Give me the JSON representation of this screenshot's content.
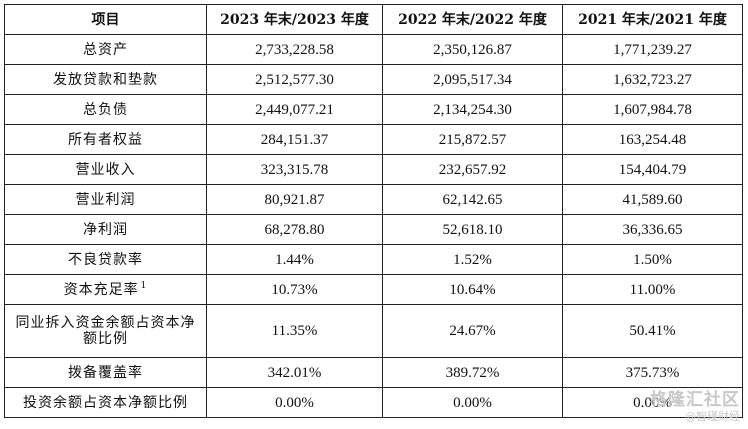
{
  "table": {
    "headers": [
      "项目",
      "2023 年末/2023 年度",
      "2022 年末/2022 年度",
      "2021 年末/2021 年度"
    ],
    "rows": [
      {
        "label": "总资产",
        "values": [
          "2,733,228.58",
          "2,350,126.87",
          "1,771,239.27"
        ]
      },
      {
        "label": "发放贷款和垫款",
        "values": [
          "2,512,577.30",
          "2,095,517.34",
          "1,632,723.27"
        ]
      },
      {
        "label": "总负债",
        "values": [
          "2,449,077.21",
          "2,134,254.30",
          "1,607,984.78"
        ]
      },
      {
        "label": "所有者权益",
        "values": [
          "284,151.37",
          "215,872.57",
          "163,254.48"
        ]
      },
      {
        "label": "营业收入",
        "values": [
          "323,315.78",
          "232,657.92",
          "154,404.79"
        ]
      },
      {
        "label": "营业利润",
        "values": [
          "80,921.87",
          "62,142.65",
          "41,589.60"
        ]
      },
      {
        "label": "净利润",
        "values": [
          "68,278.80",
          "52,618.10",
          "36,336.65"
        ]
      },
      {
        "label": "不良贷款率",
        "values": [
          "1.44%",
          "1.52%",
          "1.50%"
        ]
      },
      {
        "label": "资本充足率",
        "footnote": "1",
        "values": [
          "10.73%",
          "10.64%",
          "11.00%"
        ]
      },
      {
        "label": "同业拆入资金余额占资本净额比例",
        "values": [
          "11.35%",
          "24.67%",
          "50.41%"
        ]
      },
      {
        "label": "拨备覆盖率",
        "values": [
          "342.01%",
          "389.72%",
          "375.73%"
        ]
      },
      {
        "label": "投资余额占资本净额比例",
        "values": [
          "0.00%",
          "0.00%",
          "0.00%"
        ]
      }
    ]
  },
  "watermark": {
    "main": "格隆汇社区",
    "sub": "@智瑾财经"
  }
}
